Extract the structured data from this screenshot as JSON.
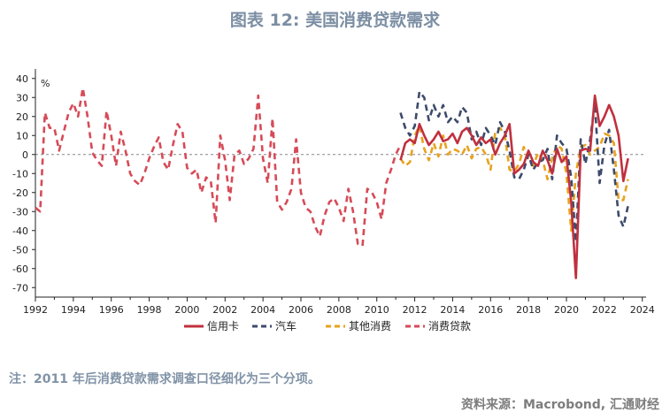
{
  "title": "图表 12: 美国消费贷款需求",
  "note": "注：2011 年后消费贷款需求调查口径细化为三个分项。",
  "source": "资料来源：Macrobond, 汇通财经",
  "chart_data": {
    "type": "line",
    "y_unit": "%",
    "ylim": [
      -75,
      45
    ],
    "y_ticks": [
      40,
      30,
      20,
      10,
      0,
      -10,
      -20,
      -30,
      -40,
      -50,
      -60,
      -70
    ],
    "xlim": [
      1992,
      2024.2
    ],
    "x_ticks": [
      1992,
      1994,
      1996,
      1998,
      2000,
      2002,
      2004,
      2006,
      2008,
      2010,
      2012,
      2014,
      2016,
      2018,
      2020,
      2022,
      2024
    ],
    "zero_line": true,
    "legend_position": "bottom",
    "series": [
      {
        "name": "信用卡",
        "color": "#c0303e",
        "style": "solid",
        "points": [
          [
            2011.25,
            -3
          ],
          [
            2011.5,
            6
          ],
          [
            2011.75,
            8
          ],
          [
            2012.0,
            6
          ],
          [
            2012.25,
            16
          ],
          [
            2012.5,
            10
          ],
          [
            2012.75,
            5
          ],
          [
            2013.0,
            8
          ],
          [
            2013.25,
            12
          ],
          [
            2013.5,
            7
          ],
          [
            2013.75,
            8
          ],
          [
            2014.0,
            11
          ],
          [
            2014.25,
            6
          ],
          [
            2014.5,
            12
          ],
          [
            2014.75,
            14
          ],
          [
            2015.0,
            10
          ],
          [
            2015.25,
            5
          ],
          [
            2015.5,
            9
          ],
          [
            2015.75,
            6
          ],
          [
            2016.0,
            8
          ],
          [
            2016.25,
            0
          ],
          [
            2016.5,
            6
          ],
          [
            2016.75,
            10
          ],
          [
            2017.0,
            16
          ],
          [
            2017.25,
            -10
          ],
          [
            2017.5,
            -8
          ],
          [
            2017.75,
            -5
          ],
          [
            2018.0,
            2
          ],
          [
            2018.25,
            -4
          ],
          [
            2018.5,
            -6
          ],
          [
            2018.75,
            2
          ],
          [
            2019.0,
            -3
          ],
          [
            2019.25,
            -10
          ],
          [
            2019.5,
            3
          ],
          [
            2019.75,
            -4
          ],
          [
            2020.0,
            -1
          ],
          [
            2020.25,
            -25
          ],
          [
            2020.5,
            -65
          ],
          [
            2020.75,
            2
          ],
          [
            2021.0,
            3
          ],
          [
            2021.25,
            2
          ],
          [
            2021.5,
            31
          ],
          [
            2021.75,
            15
          ],
          [
            2022.0,
            20
          ],
          [
            2022.25,
            26
          ],
          [
            2022.5,
            20
          ],
          [
            2022.75,
            10
          ],
          [
            2023.0,
            -14
          ],
          [
            2023.25,
            -2
          ]
        ]
      },
      {
        "name": "汽车",
        "color": "#3d4b6b",
        "style": "dashed",
        "points": [
          [
            2011.25,
            22
          ],
          [
            2011.5,
            14
          ],
          [
            2011.75,
            10
          ],
          [
            2012.0,
            15
          ],
          [
            2012.25,
            33
          ],
          [
            2012.5,
            30
          ],
          [
            2012.75,
            18
          ],
          [
            2013.0,
            26
          ],
          [
            2013.25,
            20
          ],
          [
            2013.5,
            26
          ],
          [
            2013.75,
            17
          ],
          [
            2014.0,
            20
          ],
          [
            2014.25,
            17
          ],
          [
            2014.5,
            25
          ],
          [
            2014.75,
            22
          ],
          [
            2015.0,
            8
          ],
          [
            2015.25,
            12
          ],
          [
            2015.5,
            5
          ],
          [
            2015.75,
            14
          ],
          [
            2016.0,
            10
          ],
          [
            2016.25,
            5
          ],
          [
            2016.5,
            17
          ],
          [
            2016.75,
            12
          ],
          [
            2017.0,
            2
          ],
          [
            2017.25,
            -12
          ],
          [
            2017.5,
            -13
          ],
          [
            2017.75,
            -8
          ],
          [
            2018.0,
            0
          ],
          [
            2018.25,
            -8
          ],
          [
            2018.5,
            -4
          ],
          [
            2018.75,
            -3
          ],
          [
            2019.0,
            3
          ],
          [
            2019.25,
            -13
          ],
          [
            2019.5,
            10
          ],
          [
            2019.75,
            6
          ],
          [
            2020.0,
            3
          ],
          [
            2020.25,
            -12
          ],
          [
            2020.5,
            -46
          ],
          [
            2020.75,
            8
          ],
          [
            2021.0,
            -5
          ],
          [
            2021.25,
            8
          ],
          [
            2021.5,
            27
          ],
          [
            2021.75,
            -15
          ],
          [
            2022.0,
            5
          ],
          [
            2022.25,
            13
          ],
          [
            2022.5,
            -8
          ],
          [
            2022.75,
            -32
          ],
          [
            2023.0,
            -38
          ],
          [
            2023.25,
            -27
          ]
        ]
      },
      {
        "name": "其他消费",
        "color": "#e8a21f",
        "style": "dashed",
        "points": [
          [
            2011.25,
            -2
          ],
          [
            2011.5,
            -6
          ],
          [
            2011.75,
            -4
          ],
          [
            2012.0,
            10
          ],
          [
            2012.25,
            15
          ],
          [
            2012.5,
            3
          ],
          [
            2012.75,
            -3
          ],
          [
            2013.0,
            6
          ],
          [
            2013.25,
            -1
          ],
          [
            2013.5,
            10
          ],
          [
            2013.75,
            0
          ],
          [
            2014.0,
            3
          ],
          [
            2014.25,
            2
          ],
          [
            2014.5,
            0
          ],
          [
            2014.75,
            5
          ],
          [
            2015.0,
            -2
          ],
          [
            2015.25,
            3
          ],
          [
            2015.5,
            4
          ],
          [
            2015.75,
            0
          ],
          [
            2016.0,
            -8
          ],
          [
            2016.25,
            12
          ],
          [
            2016.5,
            14
          ],
          [
            2016.75,
            10
          ],
          [
            2017.0,
            -8
          ],
          [
            2017.25,
            -9
          ],
          [
            2017.5,
            -5
          ],
          [
            2017.75,
            4
          ],
          [
            2018.0,
            -3
          ],
          [
            2018.25,
            -6
          ],
          [
            2018.5,
            1
          ],
          [
            2018.75,
            -3
          ],
          [
            2019.0,
            -13
          ],
          [
            2019.25,
            -2
          ],
          [
            2019.5,
            5
          ],
          [
            2019.75,
            3
          ],
          [
            2020.0,
            -10
          ],
          [
            2020.25,
            -40
          ],
          [
            2020.5,
            -10
          ],
          [
            2020.75,
            4
          ],
          [
            2021.0,
            5
          ],
          [
            2021.25,
            0
          ],
          [
            2021.5,
            2
          ],
          [
            2021.75,
            4
          ],
          [
            2022.0,
            11
          ],
          [
            2022.25,
            10
          ],
          [
            2022.5,
            6
          ],
          [
            2022.75,
            -24
          ],
          [
            2023.0,
            -24
          ],
          [
            2023.25,
            -13
          ]
        ]
      },
      {
        "name": "消费贷款",
        "color": "#d64b57",
        "style": "dashed",
        "points": [
          [
            1992.0,
            -28
          ],
          [
            1992.25,
            -30
          ],
          [
            1992.5,
            22
          ],
          [
            1992.75,
            14
          ],
          [
            1993.0,
            14
          ],
          [
            1993.25,
            2
          ],
          [
            1993.5,
            12
          ],
          [
            1993.75,
            22
          ],
          [
            1994.0,
            27
          ],
          [
            1994.25,
            20
          ],
          [
            1994.5,
            35
          ],
          [
            1994.75,
            20
          ],
          [
            1995.0,
            1
          ],
          [
            1995.25,
            -3
          ],
          [
            1995.5,
            -6
          ],
          [
            1995.75,
            23
          ],
          [
            1996.0,
            10
          ],
          [
            1996.25,
            -6
          ],
          [
            1996.5,
            12
          ],
          [
            1996.75,
            2
          ],
          [
            1997.0,
            -10
          ],
          [
            1997.25,
            -14
          ],
          [
            1997.5,
            -16
          ],
          [
            1997.75,
            -10
          ],
          [
            1998.0,
            -2
          ],
          [
            1998.25,
            4
          ],
          [
            1998.5,
            9
          ],
          [
            1998.75,
            -4
          ],
          [
            1999.0,
            -8
          ],
          [
            1999.25,
            5
          ],
          [
            1999.5,
            16
          ],
          [
            1999.75,
            12
          ],
          [
            2000.0,
            -7
          ],
          [
            2000.25,
            -10
          ],
          [
            2000.5,
            -8
          ],
          [
            2000.75,
            -20
          ],
          [
            2001.0,
            -12
          ],
          [
            2001.25,
            -14
          ],
          [
            2001.5,
            -36
          ],
          [
            2001.75,
            10
          ],
          [
            2002.0,
            -3
          ],
          [
            2002.25,
            -24
          ],
          [
            2002.5,
            0
          ],
          [
            2002.75,
            2
          ],
          [
            2003.0,
            -5
          ],
          [
            2003.25,
            -2
          ],
          [
            2003.5,
            3
          ],
          [
            2003.75,
            31
          ],
          [
            2004.0,
            -2
          ],
          [
            2004.25,
            -15
          ],
          [
            2004.5,
            19
          ],
          [
            2004.75,
            -25
          ],
          [
            2005.0,
            -29
          ],
          [
            2005.25,
            -25
          ],
          [
            2005.5,
            -18
          ],
          [
            2005.75,
            8
          ],
          [
            2006.0,
            -20
          ],
          [
            2006.25,
            -28
          ],
          [
            2006.5,
            -30
          ],
          [
            2006.75,
            -38
          ],
          [
            2007.0,
            -43
          ],
          [
            2007.25,
            -32
          ],
          [
            2007.5,
            -25
          ],
          [
            2007.75,
            -23
          ],
          [
            2008.0,
            -28
          ],
          [
            2008.25,
            -35
          ],
          [
            2008.5,
            -18
          ],
          [
            2008.75,
            -30
          ],
          [
            2009.0,
            -47
          ],
          [
            2009.25,
            -48
          ],
          [
            2009.5,
            -18
          ],
          [
            2009.75,
            -20
          ],
          [
            2010.0,
            -25
          ],
          [
            2010.25,
            -34
          ],
          [
            2010.5,
            -15
          ],
          [
            2010.75,
            -8
          ],
          [
            2011.0,
            0
          ],
          [
            2011.25,
            5
          ]
        ]
      }
    ]
  }
}
